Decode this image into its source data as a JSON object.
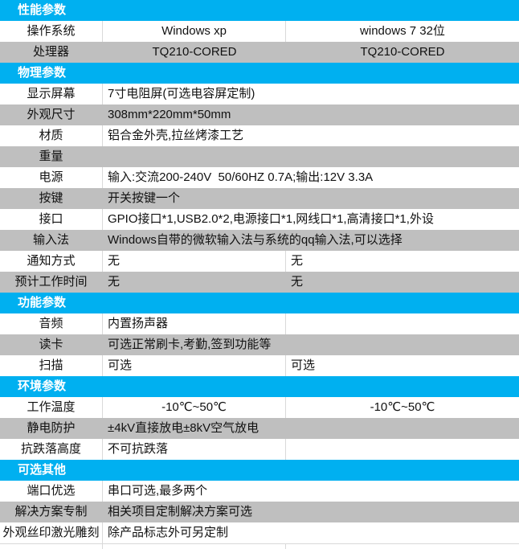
{
  "table": {
    "colors": {
      "header_bg": "#00b0f0",
      "header_text": "#ffffff",
      "alt_row_bg": "#bfbfbf",
      "row_bg": "#ffffff",
      "divider": "#d9d9d9",
      "text": "#111111"
    },
    "rows": [
      {
        "kind": "header",
        "label": "性能参数"
      },
      {
        "kind": "row",
        "shade": false,
        "span": false,
        "align": "center",
        "label": "操作系统",
        "cells": [
          "Windows xp",
          "windows 7 32位"
        ]
      },
      {
        "kind": "row",
        "shade": true,
        "span": false,
        "align": "center",
        "label": "处理器",
        "cells": [
          "TQ210-CORED",
          "TQ210-CORED"
        ]
      },
      {
        "kind": "header",
        "label": "物理参数"
      },
      {
        "kind": "row",
        "shade": false,
        "span": true,
        "align": "left",
        "label": "显示屏幕",
        "cells": [
          "7寸电阻屏(可选电容屏定制)"
        ]
      },
      {
        "kind": "row",
        "shade": true,
        "span": true,
        "align": "left",
        "label": "外观尺寸",
        "cells": [
          "308mm*220mm*50mm"
        ]
      },
      {
        "kind": "row",
        "shade": false,
        "span": true,
        "align": "left",
        "label": "材质",
        "cells": [
          "铝合金外壳,拉丝烤漆工艺"
        ]
      },
      {
        "kind": "row",
        "shade": true,
        "span": true,
        "align": "left",
        "label": "重量",
        "cells": [
          ""
        ]
      },
      {
        "kind": "row",
        "shade": false,
        "span": true,
        "align": "left",
        "label": "电源",
        "cells": [
          "输入:交流200-240V  50/60HZ 0.7A;输出:12V 3.3A"
        ]
      },
      {
        "kind": "row",
        "shade": true,
        "span": true,
        "align": "left",
        "label": "按键",
        "cells": [
          "开关按键一个"
        ]
      },
      {
        "kind": "row",
        "shade": false,
        "span": true,
        "align": "left",
        "label": "接口",
        "cells": [
          "GPIO接口*1,USB2.0*2,电源接口*1,网线口*1,高清接口*1,外设"
        ]
      },
      {
        "kind": "row",
        "shade": true,
        "span": true,
        "align": "left",
        "label": "输入法",
        "cells": [
          "Windows自带的微软输入法与系统的qq输入法,可以选择"
        ]
      },
      {
        "kind": "row",
        "shade": false,
        "span": false,
        "align": "left",
        "label": "通知方式",
        "cells": [
          "无",
          "无"
        ]
      },
      {
        "kind": "row",
        "shade": true,
        "span": false,
        "align": "left",
        "label": "预计工作时间",
        "cells": [
          "无",
          "无"
        ]
      },
      {
        "kind": "header",
        "label": "功能参数"
      },
      {
        "kind": "row",
        "shade": false,
        "span": false,
        "align": "left",
        "label": "音频",
        "cells": [
          "内置扬声器",
          ""
        ]
      },
      {
        "kind": "row",
        "shade": true,
        "span": true,
        "align": "left",
        "label": "读卡",
        "cells": [
          "可选正常刷卡,考勤,签到功能等"
        ]
      },
      {
        "kind": "row",
        "shade": false,
        "span": false,
        "align": "left",
        "label": "扫描",
        "cells": [
          "可选",
          "可选"
        ]
      },
      {
        "kind": "header",
        "label": "环境参数"
      },
      {
        "kind": "row",
        "shade": false,
        "span": false,
        "align": "center",
        "label": "工作温度",
        "cells": [
          "-10℃~50℃",
          "-10℃~50℃"
        ]
      },
      {
        "kind": "row",
        "shade": true,
        "span": true,
        "align": "left",
        "label": "静电防护",
        "cells": [
          "±4kV直接放电±8kV空气放电"
        ]
      },
      {
        "kind": "row",
        "shade": false,
        "span": false,
        "align": "left",
        "label": "抗跌落高度",
        "cells": [
          "不可抗跌落",
          ""
        ]
      },
      {
        "kind": "header",
        "label": "可选其他"
      },
      {
        "kind": "row",
        "shade": false,
        "span": true,
        "align": "left",
        "label": "端口优选",
        "cells": [
          "串口可选,最多两个"
        ]
      },
      {
        "kind": "row",
        "shade": true,
        "span": true,
        "align": "left",
        "label": "解决方案专制",
        "cells": [
          "相关项目定制解决方案可选"
        ]
      },
      {
        "kind": "row",
        "shade": false,
        "span": true,
        "align": "left",
        "label": "外观丝印激光雕刻",
        "cells": [
          "除产品标志外可另定制"
        ]
      },
      {
        "kind": "partial"
      }
    ]
  }
}
